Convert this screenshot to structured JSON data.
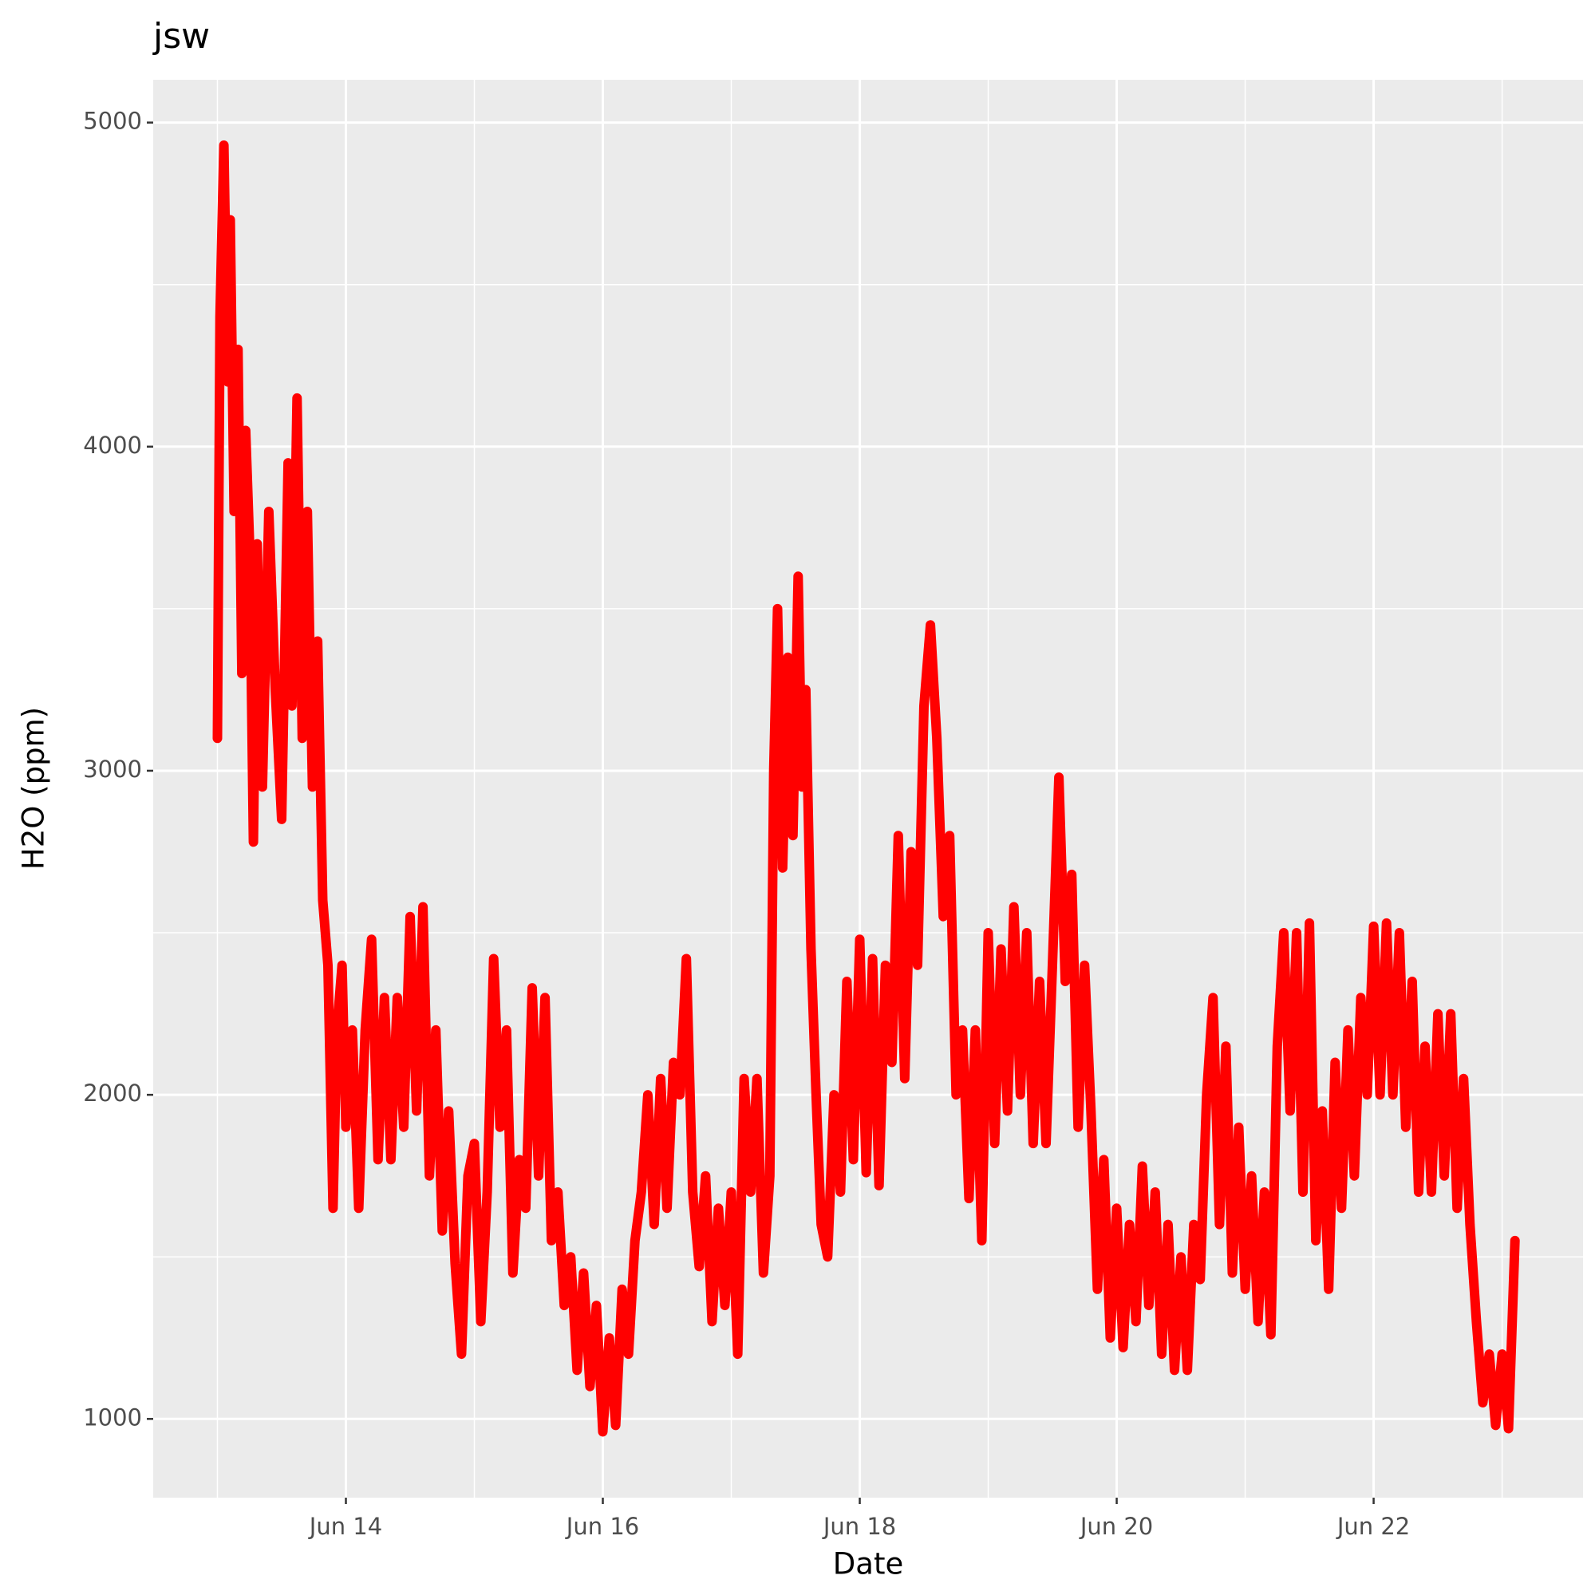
{
  "chart_data": {
    "type": "line",
    "title": "jsw",
    "x_label": "Date",
    "y_label": "H2O (ppm)",
    "color": "#ff0000",
    "grid": true,
    "xlim": [
      12.5,
      23.63
    ],
    "ylim": [
      757,
      5132
    ],
    "xticks": [
      {
        "value": 14,
        "label": "Jun 14"
      },
      {
        "value": 16,
        "label": "Jun 16"
      },
      {
        "value": 18,
        "label": "Jun 18"
      },
      {
        "value": 20,
        "label": "Jun 20"
      },
      {
        "value": 22,
        "label": "Jun 22"
      }
    ],
    "x_minor_grid": [
      13,
      15,
      17,
      19,
      21,
      23
    ],
    "yticks": [
      1000,
      2000,
      3000,
      4000,
      5000
    ],
    "y_minor_grid": [
      1500,
      2500,
      3500,
      4500
    ],
    "x": [
      13.0,
      13.02,
      13.05,
      13.08,
      13.1,
      13.13,
      13.16,
      13.19,
      13.22,
      13.25,
      13.28,
      13.31,
      13.35,
      13.4,
      13.45,
      13.5,
      13.55,
      13.58,
      13.62,
      13.66,
      13.7,
      13.74,
      13.78,
      13.82,
      13.86,
      13.9,
      13.93,
      13.97,
      14.0,
      14.05,
      14.1,
      14.15,
      14.2,
      14.25,
      14.3,
      14.35,
      14.4,
      14.45,
      14.5,
      14.55,
      14.6,
      14.65,
      14.7,
      14.75,
      14.8,
      14.85,
      14.9,
      14.95,
      15.0,
      15.05,
      15.1,
      15.15,
      15.2,
      15.25,
      15.3,
      15.35,
      15.4,
      15.45,
      15.5,
      15.55,
      15.6,
      15.65,
      15.7,
      15.75,
      15.8,
      15.85,
      15.9,
      15.95,
      16.0,
      16.05,
      16.1,
      16.15,
      16.2,
      16.25,
      16.3,
      16.35,
      16.4,
      16.45,
      16.5,
      16.55,
      16.6,
      16.65,
      16.7,
      16.75,
      16.8,
      16.85,
      16.9,
      16.95,
      17.0,
      17.05,
      17.1,
      17.15,
      17.2,
      17.25,
      17.3,
      17.33,
      17.36,
      17.4,
      17.44,
      17.48,
      17.52,
      17.55,
      17.58,
      17.62,
      17.66,
      17.7,
      17.75,
      17.8,
      17.85,
      17.9,
      17.95,
      18.0,
      18.05,
      18.1,
      18.15,
      18.2,
      18.25,
      18.3,
      18.35,
      18.4,
      18.45,
      18.5,
      18.55,
      18.6,
      18.65,
      18.7,
      18.75,
      18.8,
      18.85,
      18.9,
      18.95,
      19.0,
      19.05,
      19.1,
      19.15,
      19.2,
      19.25,
      19.3,
      19.35,
      19.4,
      19.45,
      19.5,
      19.55,
      19.6,
      19.65,
      19.7,
      19.75,
      19.8,
      19.85,
      19.9,
      19.95,
      20.0,
      20.05,
      20.1,
      20.15,
      20.2,
      20.25,
      20.3,
      20.35,
      20.4,
      20.45,
      20.5,
      20.55,
      20.6,
      20.65,
      20.7,
      20.75,
      20.8,
      20.85,
      20.9,
      20.95,
      21.0,
      21.05,
      21.1,
      21.15,
      21.2,
      21.25,
      21.3,
      21.35,
      21.4,
      21.45,
      21.5,
      21.55,
      21.6,
      21.65,
      21.7,
      21.75,
      21.8,
      21.85,
      21.9,
      21.95,
      22.0,
      22.05,
      22.1,
      22.15,
      22.2,
      22.25,
      22.3,
      22.35,
      22.4,
      22.45,
      22.5,
      22.55,
      22.6,
      22.65,
      22.7,
      22.75,
      22.8,
      22.85,
      22.9,
      22.95,
      23.0,
      23.05,
      23.1
    ],
    "values": [
      3100,
      4400,
      4930,
      4200,
      4700,
      3800,
      4300,
      3300,
      4050,
      3700,
      2780,
      3700,
      2950,
      3800,
      3250,
      2850,
      3950,
      3200,
      4150,
      3100,
      3800,
      2950,
      3400,
      2600,
      2400,
      1650,
      2200,
      2400,
      1900,
      2200,
      1650,
      2200,
      2480,
      1800,
      2300,
      1800,
      2300,
      1900,
      2550,
      1950,
      2580,
      1750,
      2200,
      1580,
      1950,
      1480,
      1200,
      1750,
      1850,
      1300,
      1700,
      2420,
      1900,
      2200,
      1450,
      1800,
      1650,
      2330,
      1750,
      2300,
      1550,
      1700,
      1350,
      1500,
      1150,
      1450,
      1100,
      1350,
      960,
      1250,
      980,
      1400,
      1200,
      1550,
      1700,
      2000,
      1600,
      2050,
      1650,
      2100,
      2000,
      2420,
      1700,
      1470,
      1750,
      1300,
      1650,
      1350,
      1700,
      1200,
      2050,
      1700,
      2050,
      1450,
      1750,
      3000,
      3500,
      2700,
      3350,
      2800,
      3600,
      2950,
      3250,
      2450,
      2000,
      1600,
      1500,
      2000,
      1700,
      2350,
      1800,
      2480,
      1760,
      2420,
      1720,
      2400,
      2100,
      2800,
      2050,
      2750,
      2400,
      3200,
      3450,
      3100,
      2550,
      2800,
      2000,
      2200,
      1680,
      2200,
      1550,
      2500,
      1850,
      2450,
      1950,
      2580,
      2000,
      2500,
      1850,
      2350,
      1850,
      2400,
      2980,
      2350,
      2680,
      1900,
      2400,
      1950,
      1400,
      1800,
      1250,
      1650,
      1220,
      1600,
      1300,
      1780,
      1350,
      1700,
      1200,
      1600,
      1150,
      1500,
      1150,
      1600,
      1430,
      2000,
      2300,
      1600,
      2150,
      1450,
      1900,
      1400,
      1750,
      1300,
      1700,
      1260,
      2150,
      2500,
      1950,
      2500,
      1700,
      2530,
      1550,
      1950,
      1400,
      2100,
      1650,
      2200,
      1750,
      2300,
      2000,
      2520,
      2000,
      2530,
      2000,
      2500,
      1900,
      2350,
      1700,
      2150,
      1700,
      2250,
      1750,
      2250,
      1650,
      2050,
      1600,
      1300,
      1050,
      1200,
      980,
      1200,
      970,
      1550
    ]
  }
}
